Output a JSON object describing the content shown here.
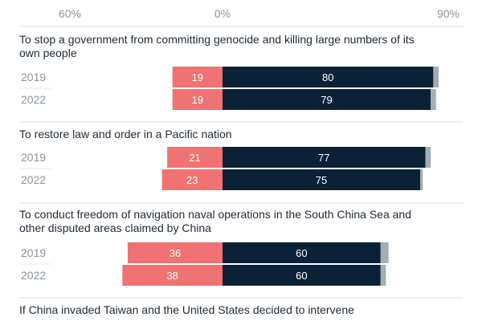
{
  "chart_data": {
    "type": "bar",
    "stacking": "diverging",
    "axis_ticks": [
      "60%",
      "0%",
      "90%"
    ],
    "xlim": [
      -60,
      90
    ],
    "colors": {
      "oppose": "#f07272",
      "support": "#0b2236",
      "remainder": "#a3adb5"
    },
    "groups": [
      {
        "question": [
          "To stop a government from committing genocide and killing large numbers of its",
          "own people"
        ],
        "rows": [
          {
            "year": "2019",
            "oppose": 19,
            "support": 80,
            "remainder": 2
          },
          {
            "year": "2022",
            "oppose": 19,
            "support": 79,
            "remainder": 2
          }
        ]
      },
      {
        "question": [
          "To restore law and order in a Pacific nation"
        ],
        "rows": [
          {
            "year": "2019",
            "oppose": 21,
            "support": 77,
            "remainder": 2
          },
          {
            "year": "2022",
            "oppose": 23,
            "support": 75,
            "remainder": 1
          }
        ]
      },
      {
        "question": [
          "To conduct freedom of navigation naval operations in the South China Sea and",
          "other disputed areas claimed by China"
        ],
        "rows": [
          {
            "year": "2019",
            "oppose": 36,
            "support": 60,
            "remainder": 3
          },
          {
            "year": "2022",
            "oppose": 38,
            "support": 60,
            "remainder": 2
          }
        ]
      },
      {
        "question": [
          "If China invaded Taiwan and the United States decided to intervene"
        ],
        "rows": []
      }
    ]
  }
}
